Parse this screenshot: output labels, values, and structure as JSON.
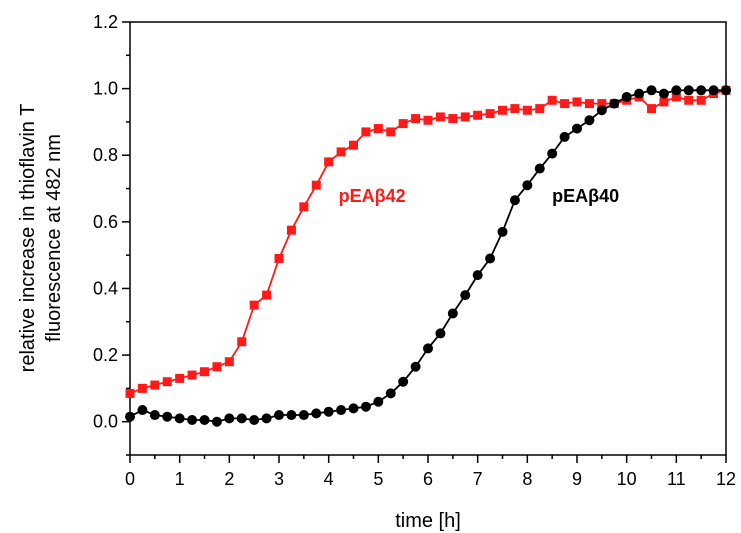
{
  "chart_data": {
    "type": "line",
    "title": "",
    "xlabel": "time [h]",
    "ylabel_lines": [
      "relative increase in thioflavin T",
      "fluorescence at 482 nm"
    ],
    "xlim": [
      0,
      12
    ],
    "ylim": [
      -0.1,
      1.2
    ],
    "x_ticks": [
      0,
      1,
      2,
      3,
      4,
      5,
      6,
      7,
      8,
      9,
      10,
      11,
      12
    ],
    "x_tick_labels": [
      "0",
      "1",
      "2",
      "3",
      "4",
      "5",
      "6",
      "7",
      "8",
      "9",
      "10",
      "11",
      "12"
    ],
    "y_ticks": [
      0.0,
      0.2,
      0.4,
      0.6,
      0.8,
      1.0,
      1.2
    ],
    "y_tick_labels": [
      "0.0",
      "0.2",
      "0.4",
      "0.6",
      "0.8",
      "1.0",
      "1.2"
    ],
    "grid": false,
    "series": [
      {
        "name": "pEAβ42",
        "color": "#ff1a1a",
        "marker": "square",
        "label_at": [
          4.2,
          0.66
        ],
        "x": [
          0,
          0.25,
          0.5,
          0.75,
          1.0,
          1.25,
          1.5,
          1.75,
          2.0,
          2.25,
          2.5,
          2.75,
          3.0,
          3.25,
          3.5,
          3.75,
          4.0,
          4.25,
          4.5,
          4.75,
          5.0,
          5.25,
          5.5,
          5.75,
          6.0,
          6.25,
          6.5,
          6.75,
          7.0,
          7.25,
          7.5,
          7.75,
          8.0,
          8.25,
          8.5,
          8.75,
          9.0,
          9.25,
          9.5,
          9.75,
          10.0,
          10.25,
          10.5,
          10.75,
          11.0,
          11.25,
          11.5,
          11.75,
          12.0
        ],
        "y": [
          0.085,
          0.1,
          0.11,
          0.12,
          0.13,
          0.14,
          0.15,
          0.165,
          0.18,
          0.24,
          0.35,
          0.38,
          0.49,
          0.575,
          0.645,
          0.71,
          0.78,
          0.81,
          0.83,
          0.87,
          0.88,
          0.87,
          0.895,
          0.91,
          0.905,
          0.915,
          0.91,
          0.915,
          0.92,
          0.925,
          0.935,
          0.94,
          0.935,
          0.94,
          0.965,
          0.955,
          0.96,
          0.955,
          0.955,
          0.955,
          0.965,
          0.975,
          0.94,
          0.96,
          0.975,
          0.965,
          0.965,
          0.985,
          0.995
        ]
      },
      {
        "name": "pEAβ40",
        "color": "#000000",
        "marker": "circle",
        "label_at": [
          8.5,
          0.66
        ],
        "x": [
          0,
          0.25,
          0.5,
          0.75,
          1.0,
          1.25,
          1.5,
          1.75,
          2.0,
          2.25,
          2.5,
          2.75,
          3.0,
          3.25,
          3.5,
          3.75,
          4.0,
          4.25,
          4.5,
          4.75,
          5.0,
          5.25,
          5.5,
          5.75,
          6.0,
          6.25,
          6.5,
          6.75,
          7.0,
          7.25,
          7.5,
          7.75,
          8.0,
          8.25,
          8.5,
          8.75,
          9.0,
          9.25,
          9.5,
          9.75,
          10.0,
          10.25,
          10.5,
          10.75,
          11.0,
          11.25,
          11.5,
          11.75,
          12.0
        ],
        "y": [
          0.015,
          0.035,
          0.02,
          0.015,
          0.01,
          0.005,
          0.005,
          0.0,
          0.01,
          0.01,
          0.005,
          0.01,
          0.02,
          0.02,
          0.02,
          0.025,
          0.03,
          0.035,
          0.04,
          0.045,
          0.06,
          0.085,
          0.12,
          0.165,
          0.22,
          0.265,
          0.325,
          0.38,
          0.44,
          0.49,
          0.57,
          0.665,
          0.71,
          0.76,
          0.805,
          0.855,
          0.88,
          0.905,
          0.935,
          0.955,
          0.975,
          0.985,
          0.995,
          0.985,
          0.995,
          0.995,
          0.995,
          0.995,
          0.995
        ]
      }
    ]
  }
}
